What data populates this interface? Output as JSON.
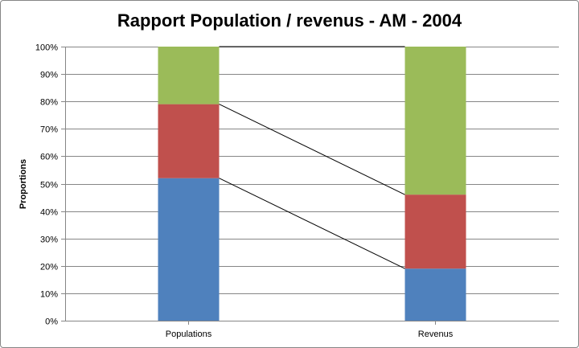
{
  "chart_data": {
    "type": "bar",
    "stacked": true,
    "percent": true,
    "title": "Rapport Population / revenus - AM - 2004",
    "xlabel": "",
    "ylabel": "Proportions",
    "categories": [
      "Populations",
      "Revenus"
    ],
    "ylim": [
      0,
      100
    ],
    "yticks": [
      "0%",
      "10%",
      "20%",
      "30%",
      "40%",
      "50%",
      "60%",
      "70%",
      "80%",
      "90%",
      "100%"
    ],
    "grid": true,
    "legend": "none",
    "series_lines": true,
    "series": [
      {
        "color": "#4F81BD",
        "values": [
          52,
          19
        ]
      },
      {
        "color": "#C0504D",
        "values": [
          27,
          27
        ]
      },
      {
        "color": "#9BBB59",
        "values": [
          21,
          54
        ]
      }
    ]
  }
}
